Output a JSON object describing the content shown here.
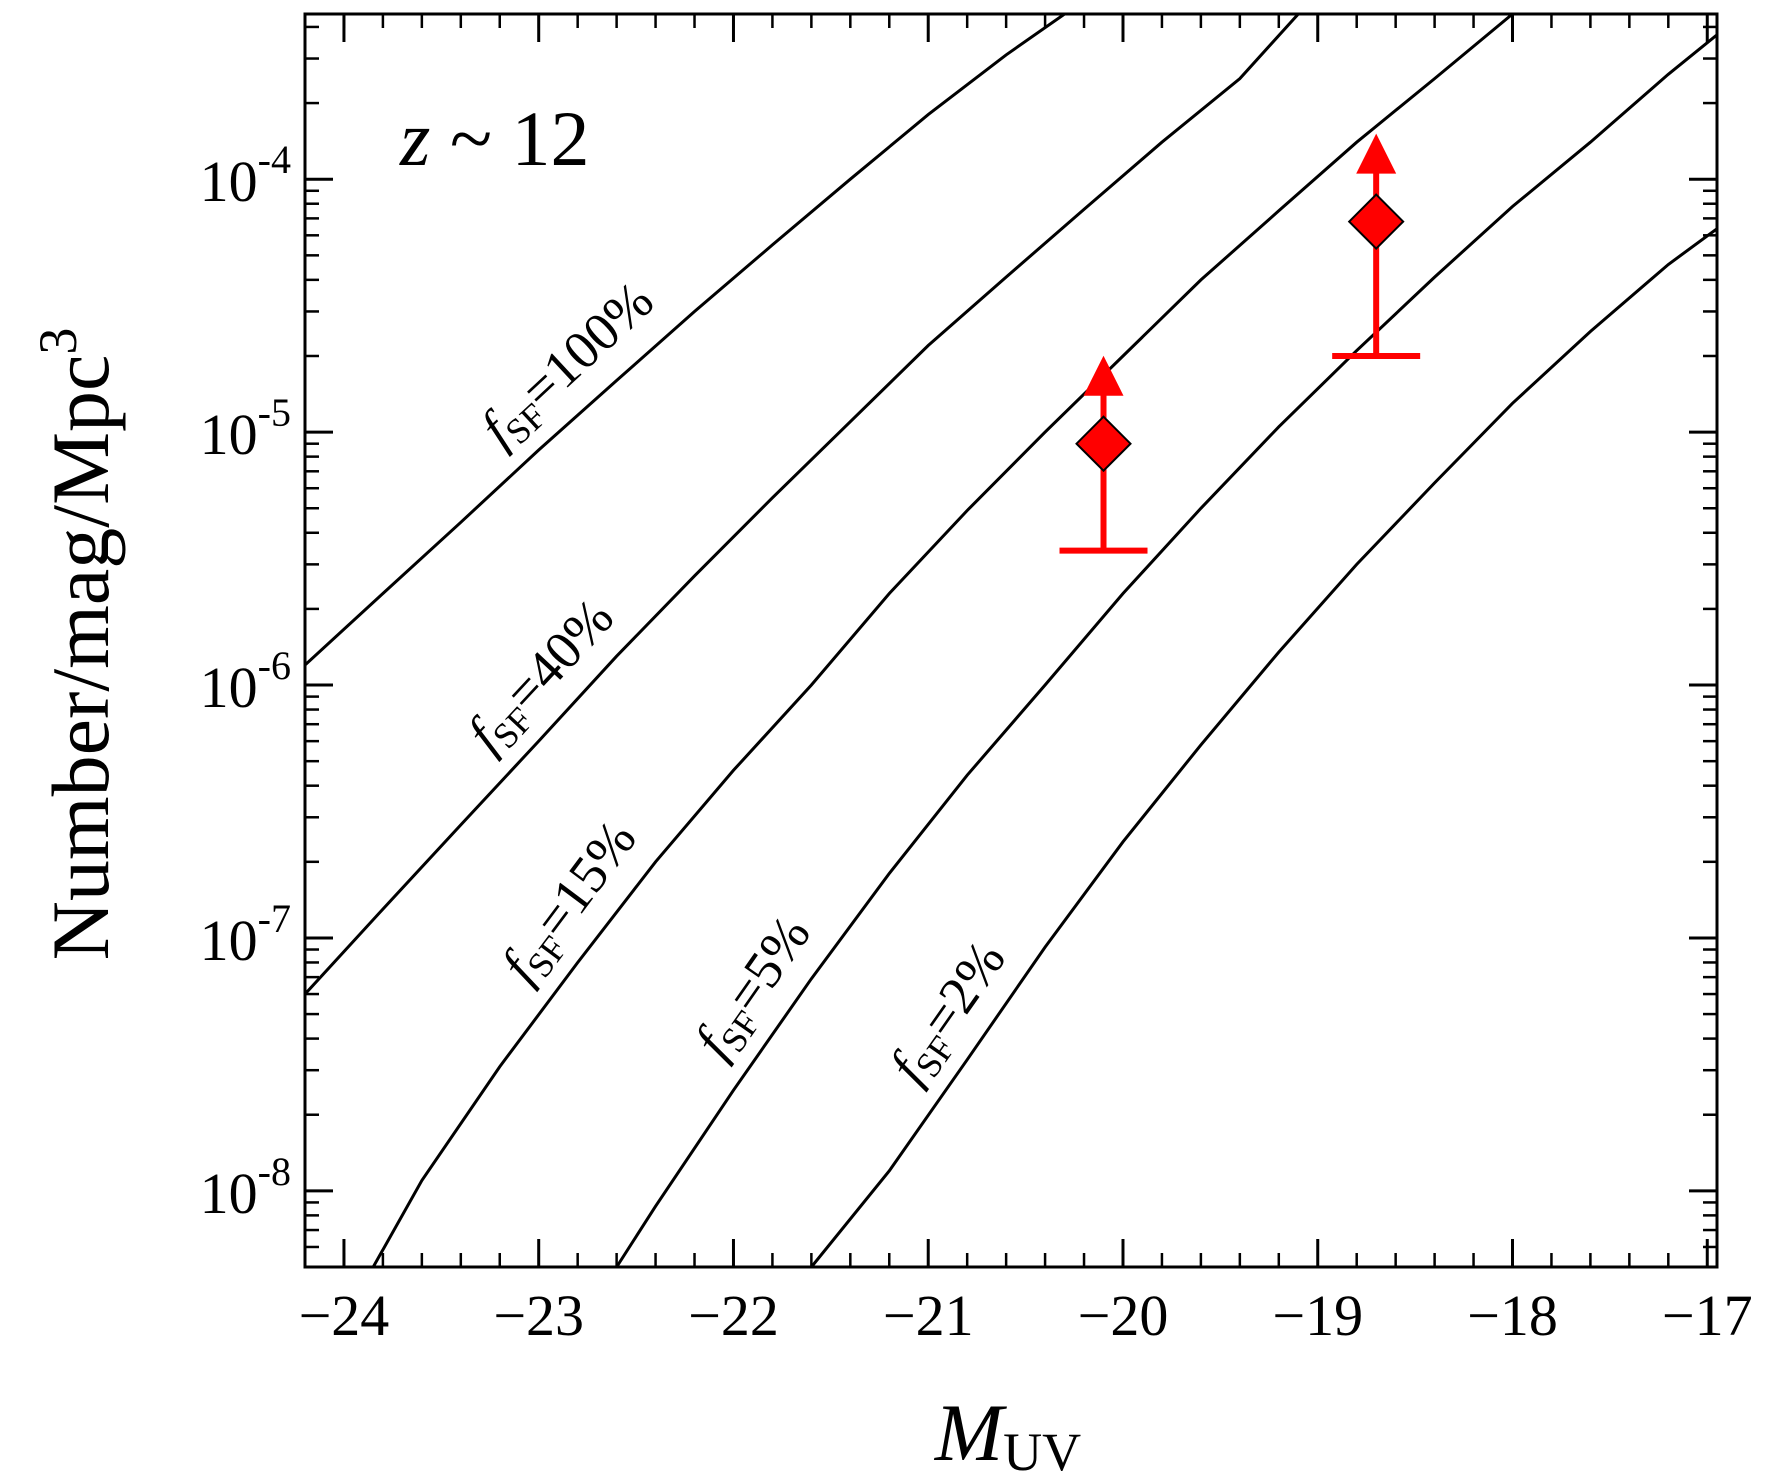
{
  "chart_data": {
    "type": "line",
    "annotation": {
      "italic": "z",
      "rest": " ~ 12"
    },
    "xlabel": {
      "main": "M",
      "sub": "UV"
    },
    "ylabel": {
      "main": "Number/mag/Mpc",
      "sup": "3"
    },
    "xlim": [
      -24.2,
      -16.95
    ],
    "ylim": [
      5e-09,
      0.00045
    ],
    "yscale": "log",
    "x_ticks": [
      -24,
      -23,
      -22,
      -21,
      -20,
      -19,
      -18,
      -17
    ],
    "x_tick_labels": [
      "−24",
      "−23",
      "−22",
      "−21",
      "−20",
      "−19",
      "−18",
      "−17"
    ],
    "y_ticks": [
      {
        "value": 1e-08,
        "base": "10",
        "exp": "-8"
      },
      {
        "value": 1e-07,
        "base": "10",
        "exp": "-7"
      },
      {
        "value": 1e-06,
        "base": "10",
        "exp": "-6"
      },
      {
        "value": 1e-05,
        "base": "10",
        "exp": "-5"
      },
      {
        "value": 0.0001,
        "base": "10",
        "exp": "-4"
      }
    ],
    "series": [
      {
        "label": {
          "italic": "f",
          "sub": "SF",
          "rest": "=100%"
        },
        "color": "#000000",
        "points": [
          [
            -24.2,
            1.2e-06
          ],
          [
            -23.8,
            2.3e-06
          ],
          [
            -23.4,
            4.4e-06
          ],
          [
            -23.0,
            8.5e-06
          ],
          [
            -22.6,
            1.6e-05
          ],
          [
            -22.2,
            3e-05
          ],
          [
            -21.8,
            5.5e-05
          ],
          [
            -21.4,
            0.0001
          ],
          [
            -21.0,
            0.00018
          ],
          [
            -20.6,
            0.00031
          ],
          [
            -20.3,
            0.00045
          ]
        ]
      },
      {
        "label": {
          "italic": "f",
          "sub": "SF",
          "rest": "=40%"
        },
        "color": "#000000",
        "points": [
          [
            -24.2,
            6e-08
          ],
          [
            -23.8,
            1.3e-07
          ],
          [
            -23.4,
            2.8e-07
          ],
          [
            -23.0,
            6e-07
          ],
          [
            -22.6,
            1.3e-06
          ],
          [
            -22.2,
            2.7e-06
          ],
          [
            -21.8,
            5.5e-06
          ],
          [
            -21.4,
            1.1e-05
          ],
          [
            -21.0,
            2.2e-05
          ],
          [
            -20.6,
            4.1e-05
          ],
          [
            -20.2,
            7.6e-05
          ],
          [
            -19.8,
            0.00014
          ],
          [
            -19.4,
            0.00025
          ],
          [
            -19.1,
            0.00045
          ]
        ]
      },
      {
        "label": {
          "italic": "f",
          "sub": "SF",
          "rest": "=15%"
        },
        "color": "#000000",
        "points": [
          [
            -23.85,
            5e-09
          ],
          [
            -23.6,
            1.1e-08
          ],
          [
            -23.2,
            3.1e-08
          ],
          [
            -22.8,
            8e-08
          ],
          [
            -22.4,
            2e-07
          ],
          [
            -22.0,
            4.6e-07
          ],
          [
            -21.6,
            1e-06
          ],
          [
            -21.2,
            2.3e-06
          ],
          [
            -20.8,
            4.9e-06
          ],
          [
            -20.4,
            1e-05
          ],
          [
            -20.0,
            2e-05
          ],
          [
            -19.6,
            4e-05
          ],
          [
            -19.2,
            7.5e-05
          ],
          [
            -18.8,
            0.00014
          ],
          [
            -18.4,
            0.00025
          ],
          [
            -18.0,
            0.00045
          ]
        ]
      },
      {
        "label": {
          "italic": "f",
          "sub": "SF",
          "rest": "=5%"
        },
        "color": "#000000",
        "points": [
          [
            -22.6,
            5e-09
          ],
          [
            -22.4,
            8.7e-09
          ],
          [
            -22.0,
            2.5e-08
          ],
          [
            -21.6,
            6.9e-08
          ],
          [
            -21.2,
            1.8e-07
          ],
          [
            -20.8,
            4.4e-07
          ],
          [
            -20.4,
            1e-06
          ],
          [
            -20.0,
            2.3e-06
          ],
          [
            -19.6,
            5e-06
          ],
          [
            -19.2,
            1.05e-05
          ],
          [
            -18.8,
            2.1e-05
          ],
          [
            -18.4,
            4.1e-05
          ],
          [
            -18.0,
            7.8e-05
          ],
          [
            -17.6,
            0.00014
          ],
          [
            -17.2,
            0.00026
          ],
          [
            -16.9,
            0.0004
          ]
        ]
      },
      {
        "label": {
          "italic": "f",
          "sub": "SF",
          "rest": "=2%"
        },
        "color": "#000000",
        "points": [
          [
            -21.6,
            5e-09
          ],
          [
            -21.2,
            1.2e-08
          ],
          [
            -20.8,
            3.3e-08
          ],
          [
            -20.4,
            9.2e-08
          ],
          [
            -20.0,
            2.4e-07
          ],
          [
            -19.6,
            5.8e-07
          ],
          [
            -19.2,
            1.35e-06
          ],
          [
            -18.8,
            3e-06
          ],
          [
            -18.4,
            6.3e-06
          ],
          [
            -18.0,
            1.3e-05
          ],
          [
            -17.6,
            2.5e-05
          ],
          [
            -17.2,
            4.6e-05
          ],
          [
            -16.9,
            6.8e-05
          ]
        ]
      }
    ],
    "points": [
      {
        "x": -20.1,
        "y": 9e-06,
        "y_low": 3.4e-06,
        "lower_limit": true,
        "color": "#ff0000"
      },
      {
        "x": -18.7,
        "y": 6.8e-05,
        "y_low": 2e-05,
        "lower_limit": true,
        "color": "#ff0000"
      }
    ]
  }
}
